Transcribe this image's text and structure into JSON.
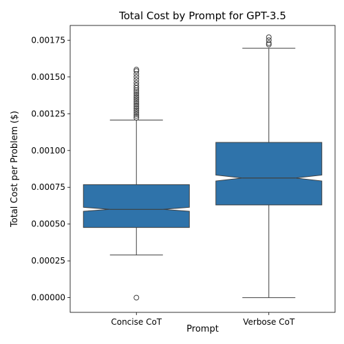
{
  "chart_data": {
    "type": "box",
    "title": "Total Cost by Prompt for GPT-3.5",
    "xlabel": "Prompt",
    "ylabel": "Total Cost per Problem ($)",
    "ylim": [
      -0.0001,
      0.00185
    ],
    "yticks": [
      0.0,
      0.00025,
      0.0005,
      0.00075,
      0.001,
      0.00125,
      0.0015,
      0.00175
    ],
    "ytick_labels": [
      "0.00000",
      "0.00025",
      "0.00050",
      "0.00075",
      "0.00100",
      "0.00125",
      "0.00150",
      "0.00175"
    ],
    "categories": [
      "Concise CoT",
      "Verbose CoT"
    ],
    "notched": true,
    "grid": false,
    "box_color": "#2f73aa",
    "boxes": [
      {
        "name": "Concise CoT",
        "q1": 0.000477,
        "median": 0.0006,
        "q3": 0.000768,
        "notch_low": 0.000587,
        "notch_high": 0.000614,
        "whisker_low": 0.00029,
        "whisker_high": 0.001207,
        "outliers": [
          0.0,
          0.001222,
          0.001235,
          0.001248,
          0.00126,
          0.001272,
          0.001285,
          0.001298,
          0.00131,
          0.001322,
          0.001335,
          0.001348,
          0.00136,
          0.001372,
          0.001385,
          0.001398,
          0.00141,
          0.001425,
          0.001442,
          0.00146,
          0.00148,
          0.0015,
          0.00152,
          0.00154,
          0.00155
        ]
      },
      {
        "name": "Verbose CoT",
        "q1": 0.00063,
        "median": 0.000813,
        "q3": 0.001055,
        "notch_low": 0.000793,
        "notch_high": 0.000833,
        "whisker_low": 0.0,
        "whisker_high": 0.001695,
        "outliers": [
          0.00172,
          0.00173,
          0.00175,
          0.00177
        ]
      }
    ]
  }
}
